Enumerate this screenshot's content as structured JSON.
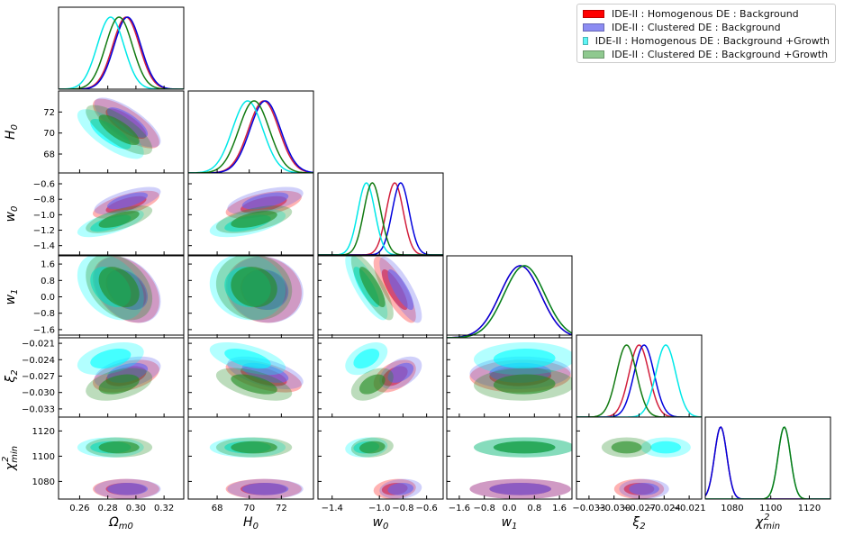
{
  "chart_data": {
    "type": "corner",
    "parameters": [
      {
        "key": "Om",
        "label": "Ω",
        "sub": "m0",
        "range": [
          0.245,
          0.334
        ],
        "ticks": [
          0.26,
          0.28,
          0.3,
          0.32
        ],
        "tick_labels": [
          "0.26",
          "0.28",
          "0.30",
          "0.32"
        ]
      },
      {
        "key": "H0",
        "label": "H",
        "sub": "0",
        "range": [
          66.2,
          74.0
        ],
        "ticks": [
          68,
          70,
          72
        ],
        "tick_labels": [
          "68",
          "70",
          "72"
        ]
      },
      {
        "key": "w0",
        "label": "w",
        "sub": "0",
        "range": [
          -1.52,
          -0.46
        ],
        "ticks": [
          -1.4,
          -1.2,
          -1.0,
          -0.8,
          -0.6
        ],
        "tick_labels": [
          "−1.4",
          "−1.2",
          "−1.0",
          "−0.8",
          "−0.6"
        ],
        "x_tick_labels": [
          "−1.4",
          "−1.0",
          "−0.8",
          "−0.6"
        ],
        "x_ticks": [
          -1.4,
          -1.0,
          -0.8,
          -0.6
        ]
      },
      {
        "key": "w1",
        "label": "w",
        "sub": "1",
        "range": [
          -2.0,
          2.0
        ],
        "ticks": [
          -1.6,
          -0.8,
          0.0,
          0.8,
          1.6
        ],
        "tick_labels": [
          "−1.6",
          "−0.8",
          "0.0",
          "0.8",
          "1.6"
        ]
      },
      {
        "key": "xi2",
        "label": "ξ",
        "sub": "2",
        "range": [
          -0.0345,
          -0.0195
        ],
        "ticks": [
          -0.033,
          -0.03,
          -0.027,
          -0.024,
          -0.021
        ],
        "tick_labels": [
          "−0.033",
          "−0.030",
          "−0.027",
          "−0.024",
          "−0.021"
        ]
      },
      {
        "key": "chi",
        "label": "χ",
        "sub": "min",
        "sup": "2",
        "range": [
          1066,
          1131
        ],
        "ticks": [
          1080,
          1100,
          1120
        ],
        "tick_labels": [
          "1080",
          "1100",
          "1120"
        ]
      }
    ],
    "series": [
      {
        "name": "IDE-II : Homogenous DE : Background",
        "color": "#ff0000",
        "line_color": "#d21e3c",
        "mean": {
          "Om": 0.293,
          "H0": 70.9,
          "w0": -0.87,
          "w1": 0.35,
          "xi2": -0.027,
          "chi": 1074
        },
        "sigma": {
          "Om": 0.0095,
          "H0": 0.95,
          "w0": 0.072,
          "w1": 0.65,
          "xi2": 0.0012,
          "chi": 3.2
        }
      },
      {
        "name": "IDE-II : Clustered DE : Background",
        "color": "#6464f0",
        "line_color": "#0000dd",
        "mean": {
          "Om": 0.294,
          "H0": 71.0,
          "w0": -0.82,
          "w1": 0.35,
          "xi2": -0.0264,
          "chi": 1074
        },
        "sigma": {
          "Om": 0.0095,
          "H0": 0.95,
          "w0": 0.072,
          "w1": 0.65,
          "xi2": 0.0012,
          "chi": 3.2
        }
      },
      {
        "name": "IDE-II : Homogenous DE : Background +Growth",
        "color": "#00ffff",
        "line_color": "#00e8e8",
        "mean": {
          "Om": 0.282,
          "H0": 69.9,
          "w0": -1.11,
          "w1": 0.48,
          "xi2": -0.0238,
          "chi": 1107
        },
        "sigma": {
          "Om": 0.0095,
          "H0": 0.95,
          "w0": 0.072,
          "w1": 0.65,
          "xi2": 0.0012,
          "chi": 3.2
        }
      },
      {
        "name": "IDE-II : Clustered DE : Background +Growth",
        "color": "#228b22",
        "line_color": "#117a11",
        "mean": {
          "Om": 0.288,
          "H0": 70.3,
          "w0": -1.06,
          "w1": 0.48,
          "xi2": -0.0285,
          "chi": 1107
        },
        "sigma": {
          "Om": 0.0095,
          "H0": 0.95,
          "w0": 0.072,
          "w1": 0.65,
          "xi2": 0.0012,
          "chi": 3.2
        }
      }
    ],
    "correlation": {
      "Om|H0": -0.75,
      "Om|w0": 0.65,
      "Om|w1": -0.35,
      "Om|xi2": 0.4,
      "Om|chi": 0.0,
      "H0|w0": 0.55,
      "H0|w1": -0.1,
      "H0|xi2": -0.55,
      "H0|chi": 0.0,
      "w0|w1": -0.8,
      "w0|xi2": 0.45,
      "w0|chi": 0.15,
      "w1|xi2": 0.05,
      "w1|chi": 0.0,
      "xi2|chi": 0.0
    },
    "title": "",
    "legend_position": "top-right"
  },
  "legend": {
    "items": [
      {
        "label": "IDE-II : Homogenous DE : Background",
        "color": "#ff0000"
      },
      {
        "label": "IDE-II : Clustered DE : Background",
        "color": "#8c8cf2"
      },
      {
        "label": "IDE-II : Homogenous DE : Background +Growth",
        "color": "#5ff5f5"
      },
      {
        "label": "IDE-II : Clustered DE : Background +Growth",
        "color": "#8fc98f"
      }
    ]
  }
}
